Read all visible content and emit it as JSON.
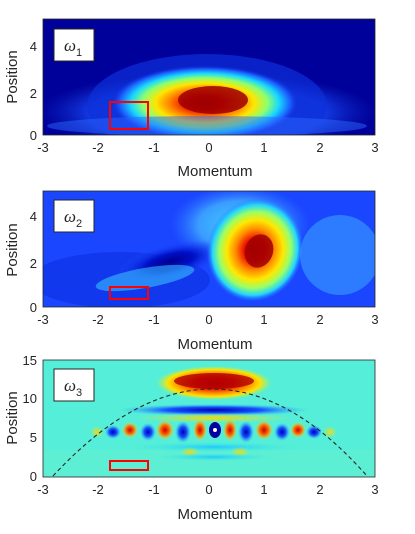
{
  "chart_data": [
    {
      "type": "heatmap",
      "panel_label": {
        "symbol": "ω",
        "subscript": "1"
      },
      "xlabel": "Momentum",
      "ylabel": "Position",
      "xlim": [
        -3,
        3
      ],
      "ylim": [
        0,
        5
      ],
      "xticks": [
        "-3",
        "-2",
        "-1",
        "0",
        "1",
        "2",
        "3"
      ],
      "yticks": [
        "0",
        "2",
        "4"
      ],
      "colormap": "jet",
      "highlight_box": {
        "x": [
          -1.9,
          -1.2
        ],
        "y": [
          0.4,
          1.6
        ],
        "color": "#ff0000"
      }
    },
    {
      "type": "heatmap",
      "panel_label": {
        "symbol": "ω",
        "subscript": "2"
      },
      "xlabel": "Momentum",
      "ylabel": "Position",
      "xlim": [
        -3,
        3
      ],
      "ylim": [
        0,
        5
      ],
      "xticks": [
        "-3",
        "-2",
        "-1",
        "0",
        "1",
        "2",
        "3"
      ],
      "yticks": [
        "0",
        "2",
        "4"
      ],
      "colormap": "jet",
      "highlight_box": {
        "x": [
          -1.9,
          -1.2
        ],
        "y": [
          0.5,
          1.0
        ],
        "color": "#ff0000"
      }
    },
    {
      "type": "heatmap",
      "panel_label": {
        "symbol": "ω",
        "subscript": "3"
      },
      "xlabel": "Momentum",
      "ylabel": "Position",
      "xlim": [
        -3,
        3
      ],
      "ylim": [
        0,
        15
      ],
      "xticks": [
        "-3",
        "-2",
        "-1",
        "0",
        "1",
        "2",
        "3"
      ],
      "yticks": [
        "0",
        "5",
        "10",
        "15"
      ],
      "colormap": "jet",
      "dashed_curve": true,
      "highlight_box": {
        "x": [
          -1.9,
          -1.2
        ],
        "y": [
          0.7,
          1.9
        ],
        "color": "#ff0000"
      }
    }
  ]
}
